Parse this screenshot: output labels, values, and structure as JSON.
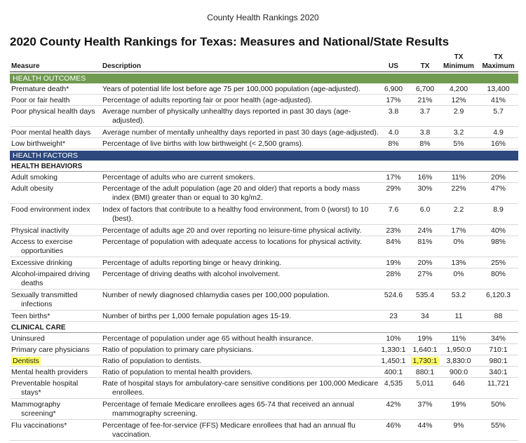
{
  "page_header": "County Health Rankings 2020",
  "title": "2020 County Health Rankings for Texas: Measures and National/State Results",
  "columns": {
    "measure": "Measure",
    "description": "Description",
    "us": "US",
    "tx": "TX",
    "tx_min_1": "TX",
    "tx_min_2": "Minimum",
    "tx_max_1": "TX",
    "tx_max_2": "Maximum"
  },
  "sections": {
    "health_outcomes": "HEALTH OUTCOMES",
    "health_factors": "HEALTH FACTORS",
    "health_behaviors": "HEALTH BEHAVIORS",
    "clinical_care": "CLINICAL CARE"
  },
  "rows": [
    {
      "measure": "Premature death*",
      "measure2": "",
      "desc": "Years of potential life lost before age 75 per 100,000 population (age-adjusted).",
      "desc2": "",
      "us": "6,900",
      "tx": "6,700",
      "min": "4,200",
      "max": "13,400"
    },
    {
      "measure": "Poor or fair health",
      "measure2": "",
      "desc": "Percentage of adults reporting fair or poor health (age-adjusted).",
      "desc2": "",
      "us": "17%",
      "tx": "21%",
      "min": "12%",
      "max": "41%"
    },
    {
      "measure": "Poor physical health days",
      "measure2": "",
      "desc": "Average number of physically unhealthy days reported in past 30 days (age-",
      "desc2": "adjusted).",
      "us": "3.8",
      "tx": "3.7",
      "min": "2.9",
      "max": "5.7"
    },
    {
      "measure": "Poor mental health days",
      "measure2": "",
      "desc": "Average number of mentally unhealthy days reported in past 30 days (age-adjusted).",
      "desc2": "",
      "us": "4.0",
      "tx": "3.8",
      "min": "3.2",
      "max": "4.9"
    },
    {
      "measure": "Low birthweight*",
      "measure2": "",
      "desc": "Percentage of live births with low birthweight (< 2,500 grams).",
      "desc2": "",
      "us": "8%",
      "tx": "8%",
      "min": "5%",
      "max": "16%"
    },
    {
      "measure": "Adult smoking",
      "measure2": "",
      "desc": "Percentage of adults who are current smokers.",
      "desc2": "",
      "us": "17%",
      "tx": "16%",
      "min": "11%",
      "max": "20%"
    },
    {
      "measure": "Adult obesity",
      "measure2": "",
      "desc": "Percentage of the adult population (age 20 and older) that reports a body mass",
      "desc2": "index (BMI) greater than or equal to 30 kg/m2.",
      "us": "29%",
      "tx": "30%",
      "min": "22%",
      "max": "47%"
    },
    {
      "measure": "Food environment index",
      "measure2": "",
      "desc": "Index of factors that contribute to a healthy food environment, from 0 (worst) to 10",
      "desc2": "(best).",
      "us": "7.6",
      "tx": "6.0",
      "min": "2.2",
      "max": "8.9"
    },
    {
      "measure": "Physical inactivity",
      "measure2": "",
      "desc": "Percentage of adults age 20 and over reporting no leisure-time physical activity.",
      "desc2": "",
      "us": "23%",
      "tx": "24%",
      "min": "17%",
      "max": "40%"
    },
    {
      "measure": "Access to exercise",
      "measure2": "opportunities",
      "desc": "Percentage of population with adequate access to locations for physical activity.",
      "desc2": "",
      "us": "84%",
      "tx": "81%",
      "min": "0%",
      "max": "98%"
    },
    {
      "measure": "Excessive drinking",
      "measure2": "",
      "desc": "Percentage of adults reporting binge or heavy drinking.",
      "desc2": "",
      "us": "19%",
      "tx": "20%",
      "min": "13%",
      "max": "25%"
    },
    {
      "measure": "Alcohol-impaired driving",
      "measure2": "deaths",
      "desc": "Percentage of driving deaths with alcohol involvement.",
      "desc2": "",
      "us": "28%",
      "tx": "27%",
      "min": "0%",
      "max": "80%"
    },
    {
      "measure": "Sexually transmitted",
      "measure2": "infections",
      "desc": "Number of newly diagnosed chlamydia cases per 100,000 population.",
      "desc2": "",
      "us": "524.6",
      "tx": "535.4",
      "min": "53.2",
      "max": "6,120.3"
    },
    {
      "measure": "Teen births*",
      "measure2": "",
      "desc": "Number of births per 1,000 female population ages 15-19.",
      "desc2": "",
      "us": "23",
      "tx": "34",
      "min": "11",
      "max": "88"
    },
    {
      "measure": "Uninsured",
      "measure2": "",
      "desc": "Percentage of population under age 65 without health insurance.",
      "desc2": "",
      "us": "10%",
      "tx": "19%",
      "min": "11%",
      "max": "34%"
    },
    {
      "measure": "Primary care physicians",
      "measure2": "",
      "desc": "Ratio of population to primary care physicians.",
      "desc2": "",
      "us": "1,330:1",
      "tx": "1,640:1",
      "min": "1,950:0",
      "max": "710:1"
    },
    {
      "measure": "Dentists",
      "measure2": "",
      "desc": "Ratio of population to dentists.",
      "desc2": "",
      "us": "1,450:1",
      "tx": "1,730:1",
      "min": "3,830:0",
      "max": "980:1"
    },
    {
      "measure": "Mental health providers",
      "measure2": "",
      "desc": "Ratio of population to mental health providers.",
      "desc2": "",
      "us": "400:1",
      "tx": "880:1",
      "min": "900:0",
      "max": "340:1"
    },
    {
      "measure": "Preventable hospital",
      "measure2": "stays*",
      "desc": "Rate of hospital stays for ambulatory-care sensitive conditions per 100,000 Medicare",
      "desc2": "enrollees.",
      "us": "4,535",
      "tx": "5,011",
      "min": "646",
      "max": "11,721"
    },
    {
      "measure": "Mammography",
      "measure2": "screening*",
      "desc": "Percentage of female Medicare enrollees ages 65-74 that received an annual",
      "desc2": "mammography screening.",
      "us": "42%",
      "tx": "37%",
      "min": "19%",
      "max": "50%"
    },
    {
      "measure": "Flu vaccinations*",
      "measure2": "",
      "desc": "Percentage of fee-for-service (FFS) Medicare enrollees that had an annual flu",
      "desc2": "vaccination.",
      "us": "46%",
      "tx": "44%",
      "min": "9%",
      "max": "55%"
    }
  ],
  "highlight_color": "#ffff66"
}
